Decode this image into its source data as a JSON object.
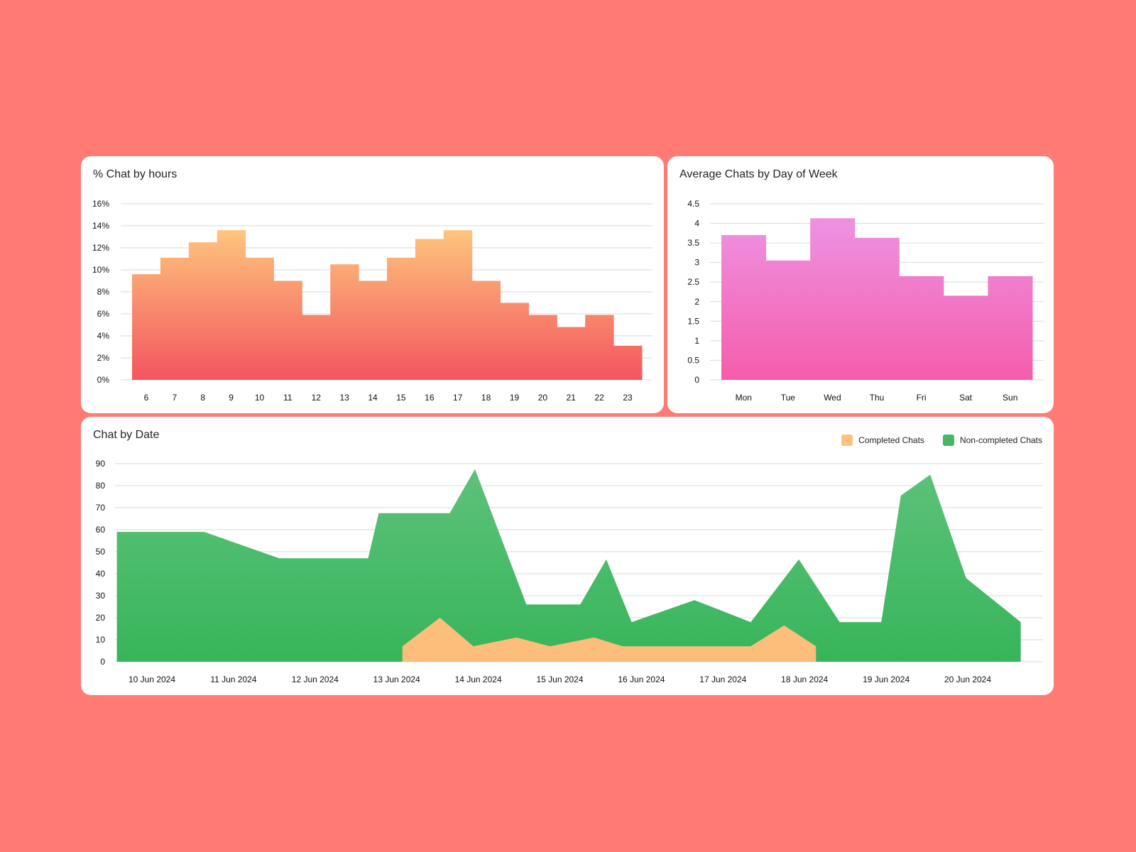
{
  "background_color": "#ff7b74",
  "chart_data": [
    {
      "id": "hours",
      "type": "bar",
      "title": "% Chat by hours",
      "xlabel": "",
      "ylabel": "",
      "categories": [
        "6",
        "7",
        "8",
        "9",
        "10",
        "11",
        "12",
        "13",
        "14",
        "15",
        "16",
        "17",
        "18",
        "19",
        "20",
        "21",
        "22",
        "23"
      ],
      "values": [
        9.6,
        11.1,
        12.5,
        13.6,
        11.1,
        9.0,
        5.9,
        10.5,
        9.0,
        11.1,
        12.8,
        13.6,
        9.0,
        7.0,
        5.9,
        4.8,
        5.9,
        3.1
      ],
      "ylim": [
        0,
        16
      ],
      "yticks": [
        0,
        2,
        4,
        6,
        8,
        10,
        12,
        14,
        16
      ],
      "ytick_labels": [
        "0%",
        "2%",
        "4%",
        "6%",
        "8%",
        "10%",
        "12%",
        "14%",
        "16%"
      ],
      "grid": true,
      "colors": {
        "top": "#fec97e",
        "bottom": "#f4555f"
      }
    },
    {
      "id": "dow",
      "type": "bar",
      "title": "Average Chats by Day of Week",
      "xlabel": "",
      "ylabel": "",
      "categories": [
        "Mon",
        "Tue",
        "Wed",
        "Thu",
        "Fri",
        "Sat",
        "Sun"
      ],
      "values": [
        3.7,
        3.05,
        4.13,
        3.63,
        2.65,
        2.15,
        2.65
      ],
      "ylim": [
        0,
        4.5
      ],
      "yticks": [
        0,
        0.5,
        1,
        1.5,
        2,
        2.5,
        3,
        3.5,
        4,
        4.5
      ],
      "ytick_labels": [
        "0",
        "0.5",
        "1",
        "1.5",
        "2",
        "2.5",
        "3",
        "3.5",
        "4",
        "4.5"
      ],
      "grid": true,
      "colors": {
        "top": "#ee90e0",
        "bottom": "#f55daa"
      }
    },
    {
      "id": "date",
      "type": "area",
      "title": "Chat by Date",
      "xlabel": "",
      "ylabel": "",
      "categories": [
        "10 Jun 2024",
        "11 Jun 2024",
        "12 Jun 2024",
        "13 Jun 2024",
        "14 Jun 2024",
        "15 Jun 2024",
        "16 Jun 2024",
        "17 Jun 2024",
        "18 Jun 2024",
        "19 Jun 2024",
        "20 Jun 2024"
      ],
      "x_unit": "days offset from 10 Jun 2024",
      "xlim": [
        -0.55,
        10.75
      ],
      "ylim": [
        0,
        90
      ],
      "yticks": [
        0,
        10,
        20,
        30,
        40,
        50,
        60,
        70,
        80,
        90
      ],
      "ytick_labels": [
        "0",
        "10",
        "20",
        "30",
        "40",
        "50",
        "60",
        "70",
        "80",
        "90"
      ],
      "grid": true,
      "legend_position": "top-right",
      "series": [
        {
          "name": "Non-completed Chats",
          "color_top": "#5ec27b",
          "color_bottom": "#37b55a",
          "x": [
            -0.43,
            0.64,
            1.56,
            2.65,
            2.78,
            3.65,
            3.96,
            4.59,
            5.25,
            5.57,
            5.88,
            6.65,
            7.34,
            7.93,
            8.43,
            8.94,
            9.18,
            9.54,
            9.98,
            10.65
          ],
          "values": [
            59,
            59,
            47,
            47,
            67.5,
            67.5,
            87.5,
            26,
            26,
            46.5,
            18,
            28,
            18,
            46.5,
            18,
            18,
            75.5,
            85,
            38,
            18
          ]
        },
        {
          "name": "Completed Chats",
          "color_top": "#fdc77e",
          "color_bottom": "#fcbd7a",
          "x": [
            3.07,
            3.53,
            3.94,
            4.47,
            4.88,
            5.42,
            5.77,
            7.34,
            7.75,
            8.14
          ],
          "values": [
            7,
            20,
            7,
            11,
            7,
            11,
            7,
            7,
            16.5,
            7
          ]
        }
      ]
    }
  ],
  "legend": {
    "items": [
      {
        "label": "Completed Chats",
        "color": "#fdc37c"
      },
      {
        "label": "Non-completed Chats",
        "color": "#45b866"
      }
    ]
  }
}
